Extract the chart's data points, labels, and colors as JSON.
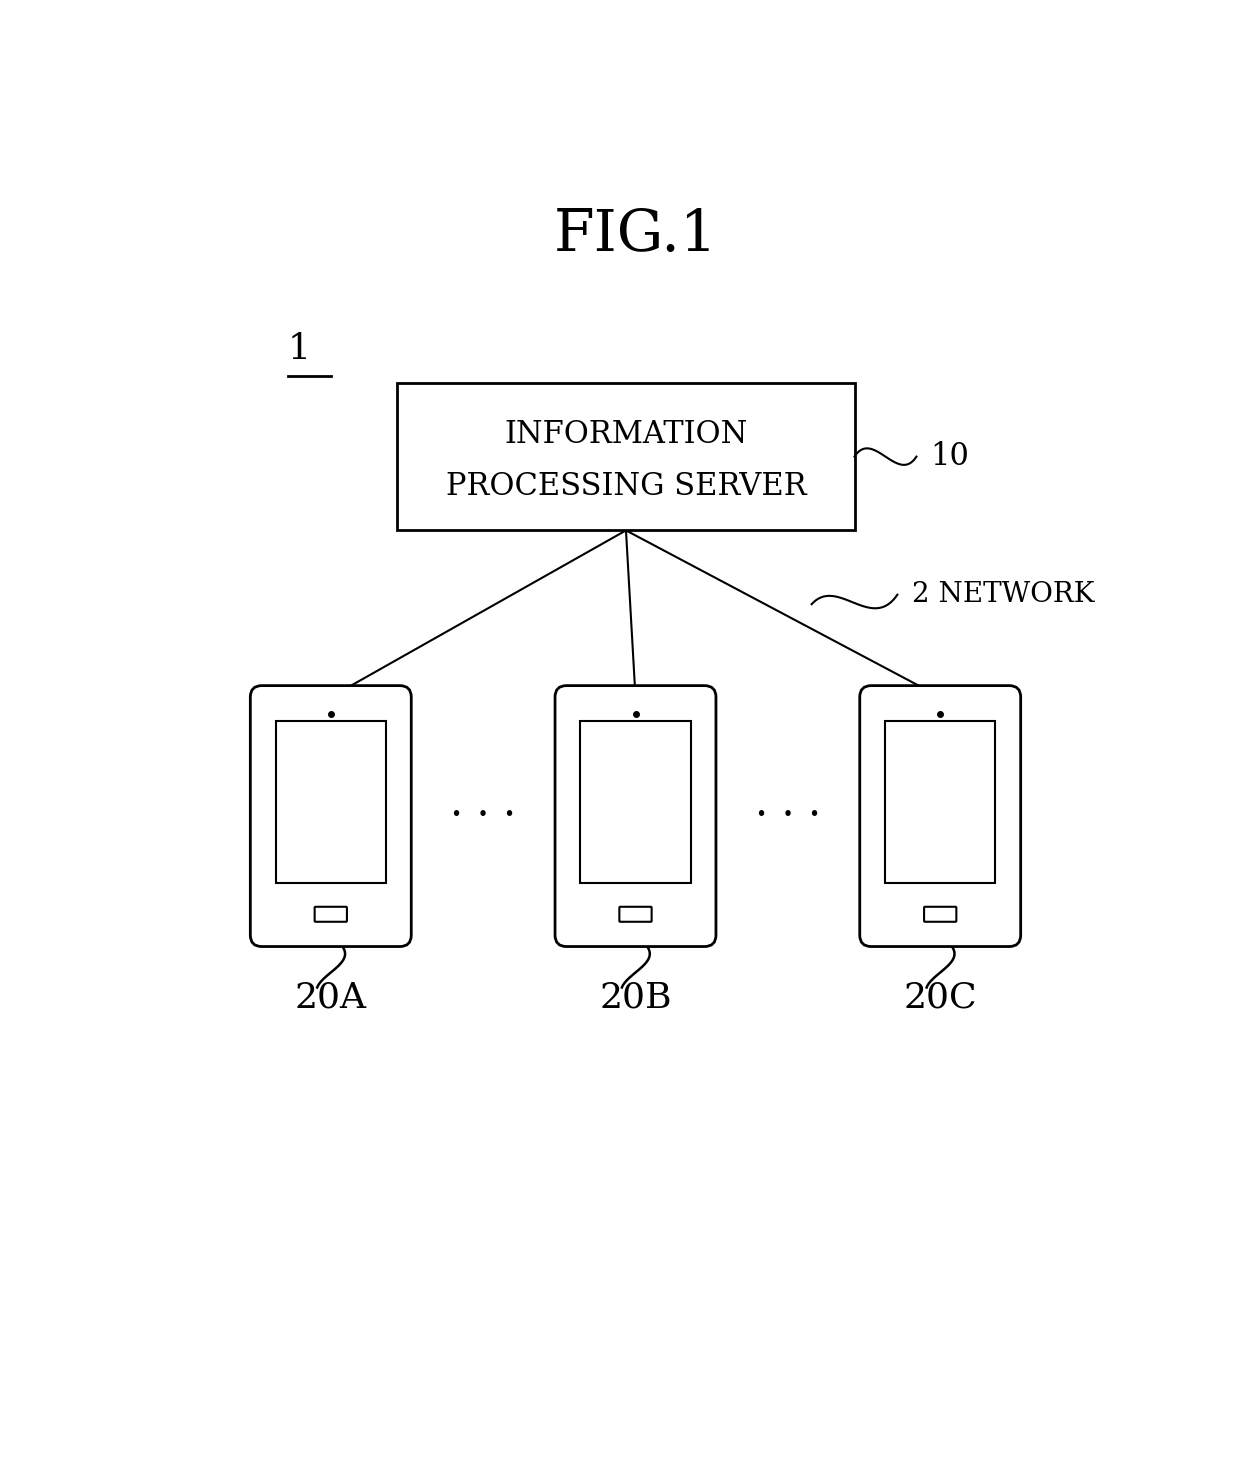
{
  "title": "FIG.1",
  "title_fontsize": 40,
  "background_color": "#ffffff",
  "fig_label": "1",
  "server_text_line1": "INFORMATION",
  "server_text_line2": "PROCESSING SERVER",
  "server_label": "10",
  "network_label": "2 NETWORK",
  "phone_labels": [
    "20A",
    "20B",
    "20C"
  ],
  "line_color": "#000000",
  "text_color": "#000000"
}
